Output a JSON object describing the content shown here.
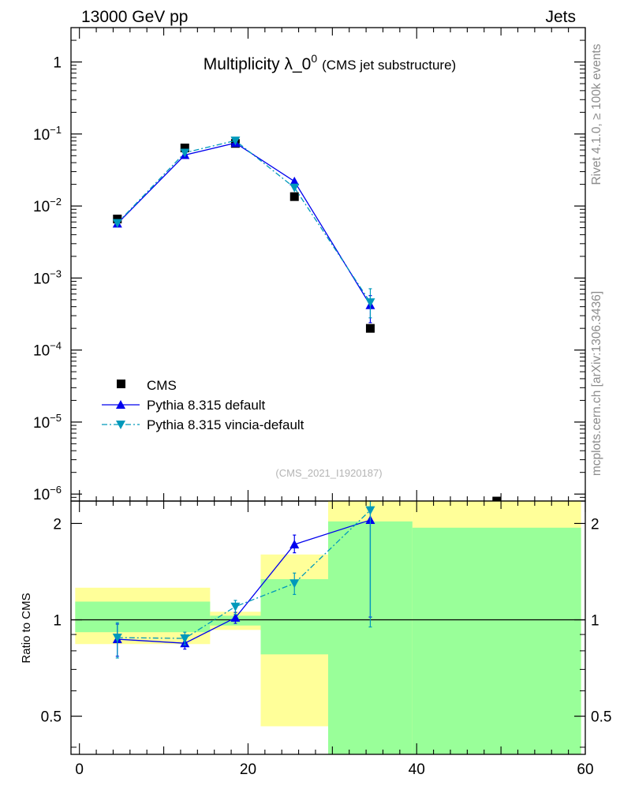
{
  "header": {
    "left": "13000 GeV pp",
    "right": "Jets"
  },
  "side_labels": {
    "rivet": "Rivet 4.1.0, ≥ 100k events",
    "mcplots": "mcplots.cern.ch [arXiv:1306.3436]"
  },
  "chart_data": [
    {
      "type": "scatter",
      "title_main": "Multiplicity λ_0",
      "title_sup": "0",
      "title_sub": "(CMS jet substructure)",
      "watermark": "(CMS_2021_I1920187)",
      "yscale": "log",
      "ylim": [
        8e-07,
        3
      ],
      "xlim": [
        -1,
        60
      ],
      "y_ticks": [
        {
          "value": 1,
          "base": "1",
          "exp": ""
        },
        {
          "value": 0.1,
          "base": "10",
          "exp": "−1"
        },
        {
          "value": 0.01,
          "base": "10",
          "exp": "−2"
        },
        {
          "value": 0.001,
          "base": "10",
          "exp": "−3"
        },
        {
          "value": 0.0001,
          "base": "10",
          "exp": "−4"
        },
        {
          "value": 1e-05,
          "base": "10",
          "exp": "−5"
        },
        {
          "value": 1e-06,
          "base": "10",
          "exp": "−6"
        }
      ],
      "legend": {
        "position": "bottom-left",
        "entries": [
          "CMS",
          "Pythia 8.315 default",
          "Pythia 8.315 vincia-default"
        ]
      },
      "series": [
        {
          "name": "CMS",
          "marker": "square",
          "color": "#000000",
          "x": [
            4.5,
            12.5,
            18.5,
            25.5,
            34.5,
            49.5
          ],
          "y": [
            0.0066,
            0.064,
            0.074,
            0.0135,
            0.0002,
            7e-07
          ]
        },
        {
          "name": "Pythia 8.315 default",
          "marker": "triangle-up",
          "color": "#0000ee",
          "line": "solid",
          "x": [
            4.5,
            12.5,
            18.5,
            25.5,
            34.5
          ],
          "y": [
            0.0057,
            0.051,
            0.075,
            0.022,
            0.00042
          ],
          "yerr_low": [
            0.0,
            0.0,
            0.0,
            0.0,
            0.00018
          ],
          "yerr_high": [
            0.0,
            0.0,
            0.0,
            0.0,
            0.00015
          ]
        },
        {
          "name": "Pythia 8.315 vincia-default",
          "marker": "triangle-down",
          "color": "#0099bb",
          "line": "dashdot",
          "x": [
            4.5,
            12.5,
            18.5,
            25.5,
            34.5
          ],
          "y": [
            0.0058,
            0.055,
            0.081,
            0.018,
            0.00046
          ],
          "yerr_low": [
            0.0,
            0.0,
            0.0,
            0.0,
            0.00018
          ],
          "yerr_high": [
            0.0,
            0.0,
            0.0,
            0.0,
            0.00025
          ]
        }
      ]
    },
    {
      "type": "scatter",
      "ylabel": "Ratio to CMS",
      "yscale": "log",
      "ylim": [
        0.38,
        2.35
      ],
      "xlim": [
        -1,
        60
      ],
      "y_ticks": [
        {
          "value": 0.5,
          "label": "0.5"
        },
        {
          "value": 1,
          "label": "1"
        },
        {
          "value": 2,
          "label": "2"
        }
      ],
      "x_ticks": [
        {
          "value": 0,
          "label": "0"
        },
        {
          "value": 20,
          "label": "20"
        },
        {
          "value": 40,
          "label": "40"
        },
        {
          "value": 60,
          "label": "60"
        }
      ],
      "reference_line": 1,
      "bands": {
        "yellow_color": "#ffff99",
        "green_color": "#99ff99",
        "bins": [
          {
            "x0": -0.5,
            "x1": 15.5,
            "yellow": [
              0.84,
              1.26
            ],
            "green": [
              0.915,
              1.14
            ]
          },
          {
            "x0": 15.5,
            "x1": 21.5,
            "yellow": [
              0.93,
              1.06
            ],
            "green": [
              0.96,
              1.03
            ]
          },
          {
            "x0": 21.5,
            "x1": 29.5,
            "yellow": [
              0.465,
              1.6
            ],
            "green": [
              0.78,
              1.34
            ]
          },
          {
            "x0": 29.5,
            "x1": 39.5,
            "yellow": [
              0.38,
              2.35
            ],
            "green": [
              0.38,
              2.03
            ]
          },
          {
            "x0": 39.5,
            "x1": 59.5,
            "yellow": [
              0.38,
              2.35
            ],
            "green": [
              0.38,
              1.94
            ]
          }
        ]
      },
      "series": [
        {
          "name": "Pythia 8.315 default",
          "marker": "triangle-up",
          "color": "#0000ee",
          "line": "solid",
          "x": [
            4.5,
            12.5,
            18.5,
            25.5,
            34.5
          ],
          "y": [
            0.87,
            0.845,
            1.015,
            1.72,
            2.05
          ],
          "yerr_low": [
            0.1,
            0.035,
            0.04,
            0.1,
            1.03
          ],
          "yerr_high": [
            0.1,
            0.035,
            0.04,
            0.12,
            0.2
          ]
        },
        {
          "name": "Pythia 8.315 vincia-default",
          "marker": "triangle-down",
          "color": "#0099bb",
          "line": "dashdot",
          "x": [
            4.5,
            12.5,
            18.5,
            25.5,
            34.5
          ],
          "y": [
            0.88,
            0.875,
            1.1,
            1.3,
            2.2
          ],
          "yerr_low": [
            0.12,
            0.04,
            0.06,
            0.1,
            1.25
          ],
          "yerr_high": [
            0.1,
            0.04,
            0.05,
            0.1,
            0.15
          ]
        }
      ]
    }
  ]
}
